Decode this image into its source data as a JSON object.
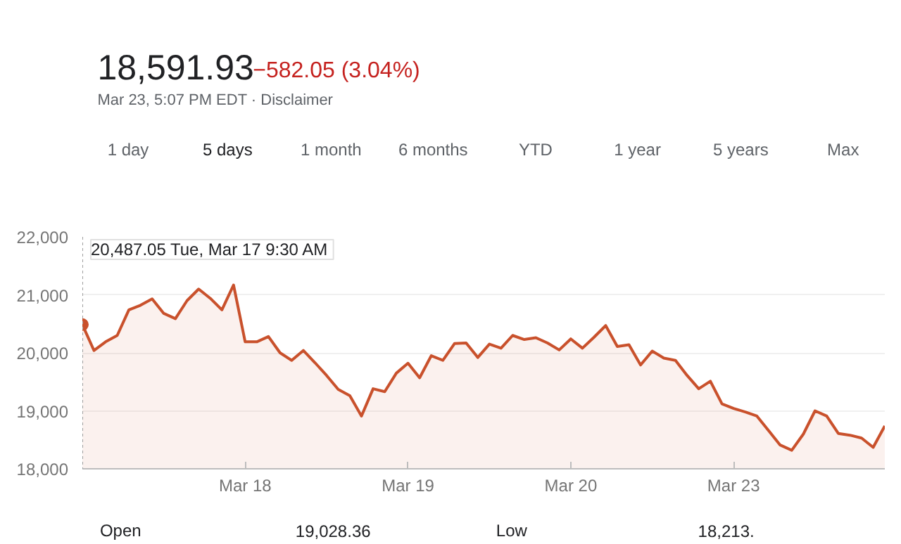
{
  "chart_data": {
    "type": "area",
    "title": "18,591.93",
    "subtitle": "−582.05 (3.04%)",
    "annotations": [
      "Mar 23, 5:07 PM EDT · Disclaimer",
      "1 day",
      "5 days",
      "1 month",
      "6 months",
      "YTD",
      "1 year",
      "5 years",
      "Max",
      "Open",
      "19,028.36",
      "Low",
      "18,213.",
      "20,487.05  Tue, Mar 17 9:30 AM"
    ],
    "categories": [
      null,
      null,
      null,
      null,
      null,
      null,
      null,
      null,
      null,
      null,
      null,
      null,
      null,
      null,
      "Mar 18",
      null,
      null,
      null,
      null,
      null,
      null,
      null,
      null,
      null,
      null,
      null,
      null,
      null,
      "Mar 19",
      null,
      null,
      null,
      null,
      null,
      null,
      null,
      null,
      null,
      null,
      null,
      null,
      null,
      "Mar 20",
      null,
      null,
      null,
      null,
      null,
      null,
      null,
      null,
      null,
      null,
      null,
      null,
      null,
      "Mar 23",
      null,
      null,
      null,
      null,
      null,
      null,
      null,
      null,
      null,
      null,
      null,
      null,
      null
    ],
    "series": [
      {
        "color": "#c9512c",
        "values": [
          20487.05,
          20040,
          20190,
          20300,
          20740,
          20820,
          20930,
          20680,
          20590,
          20900,
          21100,
          20940,
          20740,
          21170,
          20190,
          20190,
          20280,
          20000,
          19870,
          20040,
          19830,
          19610,
          19370,
          19260,
          18910,
          19380,
          19330,
          19650,
          19820,
          19570,
          19950,
          19870,
          20160,
          20170,
          19920,
          20150,
          20080,
          20300,
          20230,
          20260,
          20170,
          20050,
          20240,
          20080,
          20270,
          20470,
          20110,
          20140,
          19790,
          20030,
          19910,
          19870,
          19610,
          19380,
          19510,
          19120,
          19040,
          18980,
          18910,
          18660,
          18410,
          18320,
          18600,
          19000,
          18910,
          18610,
          18580,
          18530,
          18370,
          18740
        ]
      }
    ],
    "ylim": [
      18000,
      22000
    ],
    "yticks": [
      {
        "value": 18000,
        "label": "18,000"
      },
      {
        "value": 19000,
        "label": "19,000"
      },
      {
        "value": 20000,
        "label": "20,000"
      },
      {
        "value": 21000,
        "label": "21,000"
      },
      {
        "value": 22000,
        "label": "22,000"
      }
    ],
    "grid": "y"
  }
}
